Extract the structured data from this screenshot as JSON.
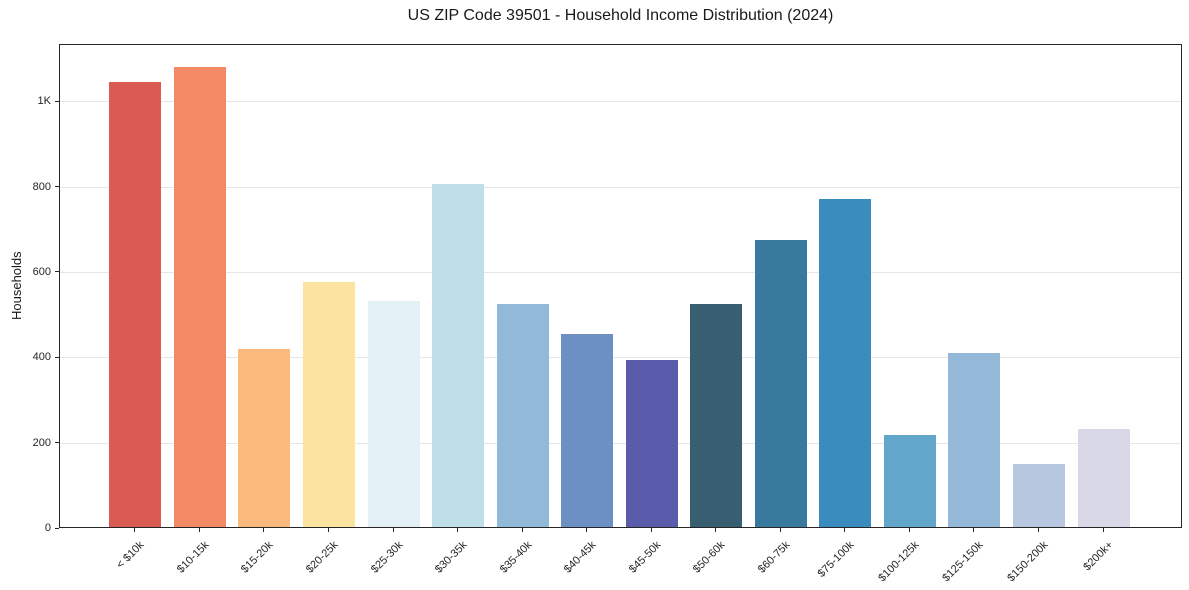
{
  "chart_data": {
    "type": "bar",
    "title": "US ZIP Code 39501 - Household Income Distribution (2024)",
    "xlabel": "",
    "ylabel": "Households",
    "categories": [
      "< $10k",
      "$10-15k",
      "$15-20k",
      "$20-25k",
      "$25-30k",
      "$30-35k",
      "$35-40k",
      "$40-45k",
      "$45-50k",
      "$50-60k",
      "$60-75k",
      "$75-100k",
      "$100-125k",
      "$125-150k",
      "$150-200k",
      "$200k+"
    ],
    "values": [
      1042,
      1077,
      417,
      574,
      530,
      803,
      522,
      452,
      392,
      523,
      672,
      768,
      215,
      407,
      148,
      230
    ],
    "bar_colors": [
      "#d95b52",
      "#f38a66",
      "#fbb97b",
      "#fce3a0",
      "#e3f0f5",
      "#bedfea",
      "#90bad8",
      "#6c90c4",
      "#5b5bab",
      "#375e71",
      "#38799e",
      "#3a8cbe",
      "#62a7cb",
      "#93b8d8",
      "#b6c7df",
      "#d9d8e6"
    ],
    "ytick_values": [
      0,
      200,
      400,
      600,
      800,
      1000
    ],
    "ytick_labels": [
      "0",
      "200",
      "400",
      "600",
      "800",
      "1K"
    ],
    "ylim": [
      0,
      1134
    ],
    "grid": "horizontal",
    "gridline_color": "#e6e6e6",
    "spine_color": "#262626",
    "background": "#ffffff",
    "legend": "none",
    "bar_width_fraction": 0.8,
    "x_label_rotation_deg": 45
  }
}
